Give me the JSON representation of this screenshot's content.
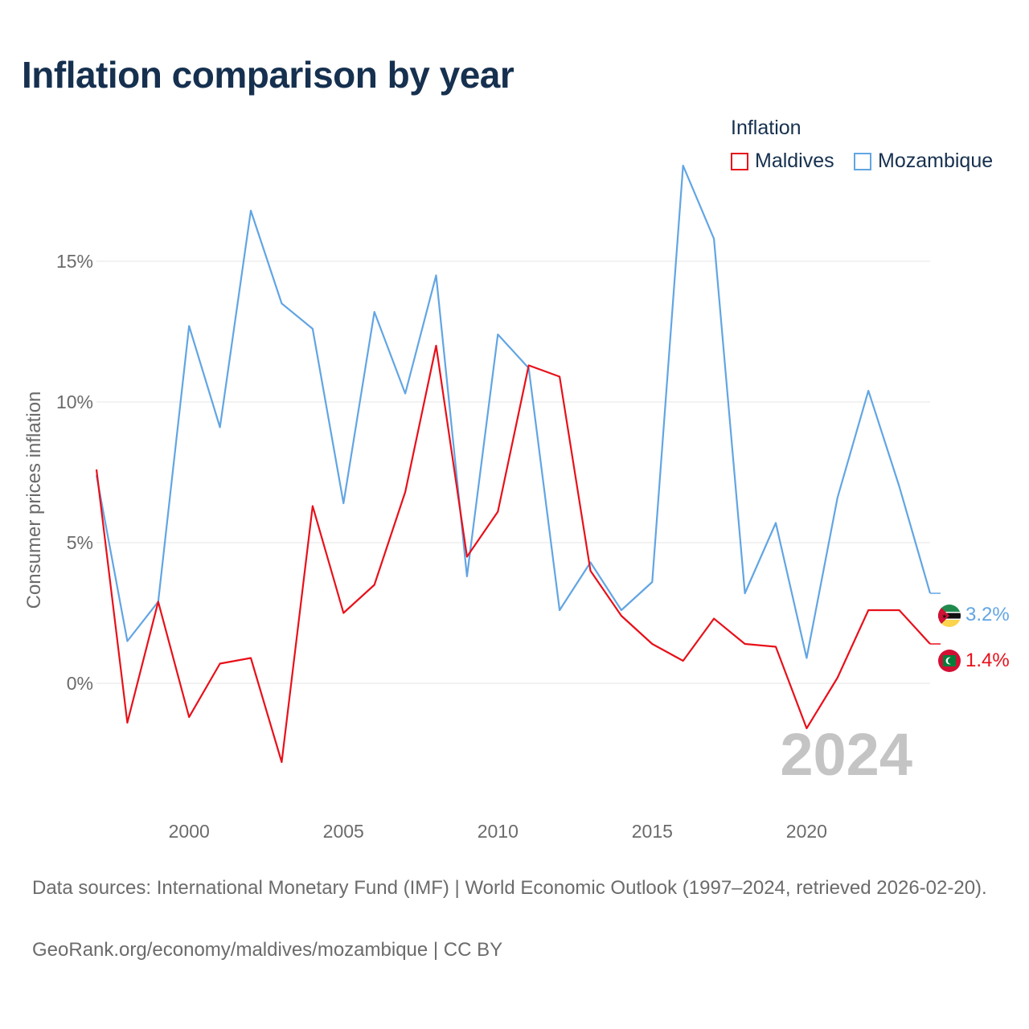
{
  "title": "Inflation comparison by year",
  "legend": {
    "title": "Inflation",
    "items": [
      {
        "label": "Maldives",
        "color": "#e8101a"
      },
      {
        "label": "Mozambique",
        "color": "#62a5e3"
      }
    ]
  },
  "watermark_year": "2024",
  "footer": {
    "sources": "Data sources: International Monetary Fund (IMF) | World Economic Outlook (1997–2024, retrieved 2026-02-20).",
    "credit": "GeoRank.org/economy/maldives/mozambique | CC BY"
  },
  "chart_data": {
    "type": "line",
    "title": "Inflation comparison by year",
    "xlabel": "",
    "ylabel": "Consumer prices inflation",
    "x": [
      1997,
      1998,
      1999,
      2000,
      2001,
      2002,
      2003,
      2004,
      2005,
      2006,
      2007,
      2008,
      2009,
      2010,
      2011,
      2012,
      2013,
      2014,
      2015,
      2016,
      2017,
      2018,
      2019,
      2020,
      2021,
      2022,
      2023,
      2024
    ],
    "xlim": [
      1997,
      2024
    ],
    "xticks": [
      2000,
      2005,
      2010,
      2015,
      2020
    ],
    "ylim": [
      -4,
      18
    ],
    "yticks": [
      0,
      5,
      10,
      15
    ],
    "ytick_labels": [
      "0%",
      "5%",
      "10%",
      "15%"
    ],
    "series": [
      {
        "name": "Maldives",
        "color": "#e8101a",
        "end_label": "1.4%",
        "values": [
          7.6,
          -1.4,
          2.9,
          -1.2,
          0.7,
          0.9,
          -2.8,
          6.3,
          2.5,
          3.5,
          6.8,
          12.0,
          4.5,
          6.1,
          11.3,
          10.9,
          4.0,
          2.4,
          1.4,
          0.8,
          2.3,
          1.4,
          1.3,
          -1.6,
          0.2,
          2.6,
          2.6,
          1.4
        ]
      },
      {
        "name": "Mozambique",
        "color": "#62a5e3",
        "end_label": "3.2%",
        "values": [
          7.4,
          1.5,
          2.9,
          12.7,
          9.1,
          16.8,
          13.5,
          12.6,
          6.4,
          13.2,
          10.3,
          14.5,
          3.8,
          12.4,
          11.2,
          2.6,
          4.3,
          2.6,
          3.6,
          18.4,
          15.8,
          3.2,
          5.7,
          0.9,
          6.6,
          10.4,
          7.0,
          3.2
        ]
      }
    ]
  }
}
